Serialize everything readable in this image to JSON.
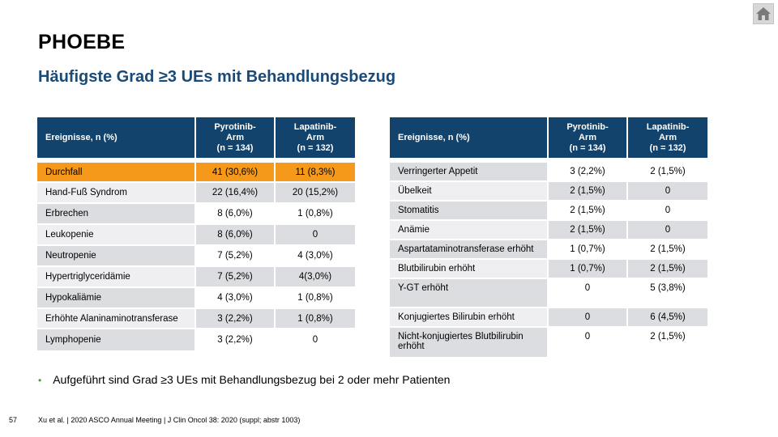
{
  "title": "PHOEBE",
  "subtitle": "Häufigste Grad ≥3 UEs mit Behandlungsbezug",
  "icons": {
    "home": "home-icon"
  },
  "left_table": {
    "headers": {
      "event": "Ereignisse, n (%)",
      "pyro_1": "Pyrotinib-",
      "pyro_2": "Arm",
      "pyro_3": "(n = 134)",
      "lapa_1": "Lapatinib-",
      "lapa_2": "Arm",
      "lapa_3": "(n = 132)"
    },
    "highlight_color": "#f4991a",
    "rows": [
      {
        "event": "Durchfall",
        "pyrotinib": "41 (30,6%)",
        "lapatinib": "11 (8,3%)"
      },
      {
        "event": "Hand-Fuß Syndrom",
        "pyrotinib": "22 (16,4%)",
        "lapatinib": "20 (15,2%)"
      },
      {
        "event": "Erbrechen",
        "pyrotinib": "8 (6,0%)",
        "lapatinib": "1 (0,8%)"
      },
      {
        "event": "Leukopenie",
        "pyrotinib": "8 (6,0%)",
        "lapatinib": "0"
      },
      {
        "event": "Neutropenie",
        "pyrotinib": "7 (5,2%)",
        "lapatinib": "4 (3,0%)"
      },
      {
        "event": "Hypertriglyceridämie",
        "pyrotinib": "7 (5,2%)",
        "lapatinib": "4(3,0%)"
      },
      {
        "event": "Hypokaliämie",
        "pyrotinib": "4 (3,0%)",
        "lapatinib": "1 (0,8%)"
      },
      {
        "event": "Erhöhte Alaninaminotransferase",
        "pyrotinib": "3 (2,2%)",
        "lapatinib": "1 (0,8%)"
      },
      {
        "event": "Lymphopenie",
        "pyrotinib": "3 (2,2%)",
        "lapatinib": "0"
      }
    ]
  },
  "right_table": {
    "headers": {
      "event": "Ereignisse, n (%)",
      "pyro_1": "Pyrotinib-",
      "pyro_2": "Arm",
      "pyro_3": "(n = 134)",
      "lapa_1": "Lapatinib-",
      "lapa_2": "Arm",
      "lapa_3": "(n = 132)"
    },
    "rows": [
      {
        "event": "Verringerter Appetit",
        "pyrotinib": "3 (2,2%)",
        "lapatinib": "2 (1,5%)"
      },
      {
        "event": "Übelkeit",
        "pyrotinib": "2 (1,5%)",
        "lapatinib": "0"
      },
      {
        "event": "Stomatitis",
        "pyrotinib": "2 (1,5%)",
        "lapatinib": "0"
      },
      {
        "event": "Anämie",
        "pyrotinib": "2 (1,5%)",
        "lapatinib": "0"
      },
      {
        "event": "Aspartataminotransferase erhöht",
        "pyrotinib": "1 (0,7%)",
        "lapatinib": "2 (1,5%)"
      },
      {
        "event": "Blutbilirubin erhöht",
        "pyrotinib": "1 (0,7%)",
        "lapatinib": "2 (1,5%)"
      },
      {
        "event": "Y-GT erhöht",
        "pyrotinib": "0",
        "lapatinib": "5 (3,8%)"
      },
      {
        "event": "Konjugiertes Bilirubin erhöht",
        "pyrotinib": "0",
        "lapatinib": "6 (4,5%)"
      },
      {
        "event": "Nicht-konjugiertes Blutbilirubin erhöht",
        "pyrotinib": "0",
        "lapatinib": "2 (1,5%)"
      }
    ]
  },
  "bullet": "Aufgeführt sind Grad ≥3 UEs mit Behandlungsbezug bei 2 oder mehr Patienten",
  "page_number": "57",
  "footer": "Xu et al. | 2020 ASCO Annual Meeting | J Clin Oncol 38: 2020 (suppl; abstr 1003)"
}
